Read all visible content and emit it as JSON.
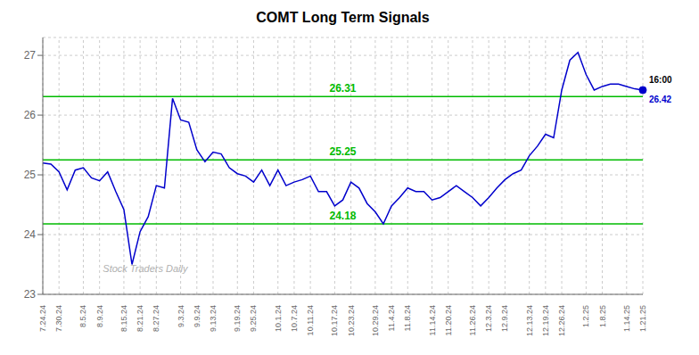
{
  "chart_data": {
    "type": "line",
    "title": "COMT Long Term Signals",
    "categories": [
      "7.24.24",
      null,
      "7.30.24",
      null,
      null,
      "8.5.24",
      null,
      "8.9.24",
      null,
      null,
      "8.15.24",
      null,
      "8.21.24",
      null,
      "8.27.24",
      null,
      null,
      "9.3.24",
      null,
      "9.9.24",
      null,
      "9.13.24",
      null,
      null,
      "9.19.24",
      null,
      "9.25.24",
      null,
      null,
      "10.1.24",
      null,
      "10.7.24",
      null,
      "10.11.24",
      null,
      null,
      "10.17.24",
      null,
      "10.23.24",
      null,
      null,
      "10.29.24",
      null,
      "11.4.24",
      null,
      "11.8.24",
      null,
      null,
      "11.14.24",
      null,
      "11.20.24",
      null,
      null,
      "11.26.24",
      null,
      "12.3.24",
      null,
      "12.9.24",
      null,
      null,
      "12.13.24",
      null,
      "12.19.24",
      null,
      "12.26.24",
      null,
      null,
      "1.2.25",
      null,
      "1.8.25",
      null,
      null,
      "1.14.25",
      null,
      "1.21.25"
    ],
    "values": [
      25.2,
      25.18,
      25.05,
      24.75,
      25.08,
      25.12,
      24.95,
      24.9,
      25.05,
      24.72,
      24.42,
      23.5,
      24.05,
      24.3,
      24.82,
      24.78,
      26.28,
      25.92,
      25.88,
      25.42,
      25.22,
      25.38,
      25.35,
      25.12,
      25.02,
      24.98,
      24.88,
      25.08,
      24.82,
      25.08,
      24.82,
      24.88,
      24.92,
      24.98,
      24.72,
      24.72,
      24.48,
      24.58,
      24.88,
      24.78,
      24.52,
      24.38,
      24.18,
      24.48,
      24.62,
      24.78,
      24.72,
      24.72,
      24.58,
      24.62,
      24.72,
      24.82,
      24.72,
      24.62,
      24.48,
      24.62,
      24.78,
      24.92,
      25.02,
      25.08,
      25.32,
      25.48,
      25.68,
      25.62,
      26.42,
      26.92,
      27.05,
      26.68,
      26.42,
      26.48,
      26.52,
      26.52,
      26.48,
      26.44,
      26.42
    ],
    "color": "#0000cc",
    "marker": "circle",
    "hlines": [
      {
        "value": 26.31,
        "label": "26.31",
        "color": "#00bb00"
      },
      {
        "value": 25.25,
        "label": "25.25",
        "color": "#00bb00"
      },
      {
        "value": 24.18,
        "label": "24.18",
        "color": "#00bb00"
      }
    ],
    "annotations": [
      "16:00",
      "26.42",
      "Stock Traders Daily"
    ],
    "ylim": [
      23,
      27.3
    ],
    "yticks": [
      23,
      24,
      25,
      26,
      27
    ],
    "grid": true
  }
}
